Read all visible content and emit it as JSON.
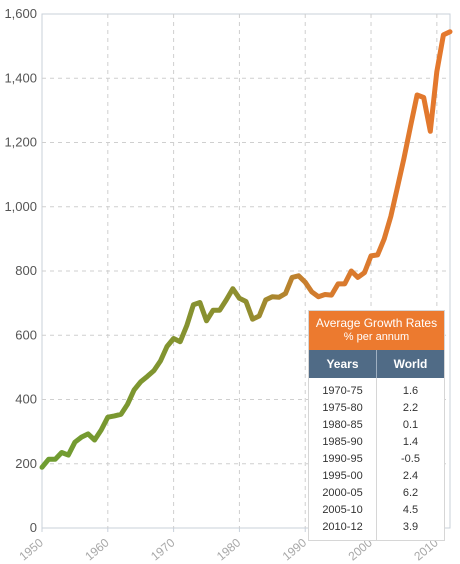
{
  "chart_data": {
    "type": "line",
    "title": "",
    "xlabel": "",
    "ylabel": "",
    "xlim": [
      1950,
      2012
    ],
    "ylim": [
      0,
      1600
    ],
    "xticks": [
      1950,
      1960,
      1970,
      1980,
      1990,
      2000,
      2010
    ],
    "yticks": [
      0,
      200,
      400,
      600,
      800,
      1000,
      1200,
      1400,
      1600
    ],
    "ytick_labels": [
      "0",
      "200",
      "400",
      "600",
      "800",
      "1,000",
      "1,200",
      "1,400",
      "1,600"
    ],
    "grid": true,
    "line_gradient": [
      "#6e9d31",
      "#e5782d"
    ],
    "x": [
      1950,
      1951,
      1952,
      1953,
      1954,
      1955,
      1956,
      1957,
      1958,
      1959,
      1960,
      1961,
      1962,
      1963,
      1964,
      1965,
      1966,
      1967,
      1968,
      1969,
      1970,
      1971,
      1972,
      1973,
      1974,
      1975,
      1976,
      1977,
      1978,
      1979,
      1980,
      1981,
      1982,
      1983,
      1984,
      1985,
      1986,
      1987,
      1988,
      1989,
      1990,
      1991,
      1992,
      1993,
      1994,
      1995,
      1996,
      1997,
      1998,
      1999,
      2000,
      2001,
      2002,
      2003,
      2004,
      2005,
      2006,
      2007,
      2008,
      2009,
      2010,
      2011,
      2012
    ],
    "values": [
      189,
      214,
      214,
      235,
      227,
      267,
      283,
      293,
      274,
      305,
      345,
      349,
      354,
      385,
      430,
      455,
      472,
      490,
      520,
      565,
      590,
      580,
      630,
      695,
      702,
      645,
      678,
      678,
      710,
      745,
      715,
      705,
      650,
      660,
      710,
      720,
      718,
      730,
      780,
      785,
      765,
      735,
      720,
      727,
      725,
      760,
      760,
      800,
      780,
      795,
      847,
      850,
      900,
      970,
      1060,
      1150,
      1250,
      1348,
      1340,
      1235,
      1420,
      1535,
      1545
    ],
    "table": {
      "title": "Average Growth Rates",
      "subtitle": "% per annum",
      "columns": [
        "Years",
        "World"
      ],
      "rows": [
        [
          "1970-75",
          "1.6"
        ],
        [
          "1975-80",
          "2.2"
        ],
        [
          "1980-85",
          "0.1"
        ],
        [
          "1985-90",
          "1.4"
        ],
        [
          "1990-95",
          "-0.5"
        ],
        [
          "1995-00",
          "2.4"
        ],
        [
          "2000-05",
          "6.2"
        ],
        [
          "2005-10",
          "4.5"
        ],
        [
          "2010-12",
          "3.9"
        ]
      ]
    }
  }
}
